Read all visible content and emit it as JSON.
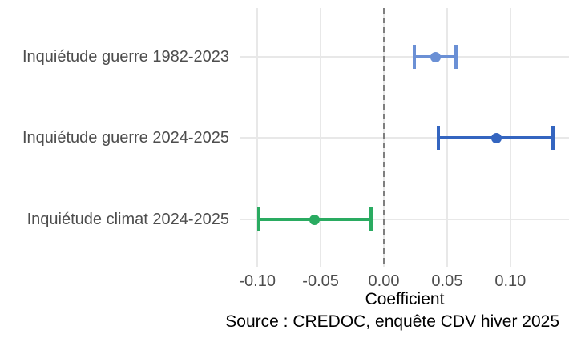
{
  "chart_data": {
    "type": "errorbar",
    "orientation": "horizontal",
    "xlabel": "Coefficient",
    "caption": "Source : CREDOC, enquête CDV hiver 2025",
    "xlim": [
      -0.113,
      0.146
    ],
    "grid": true,
    "legend": "none",
    "zero_line": {
      "x": 0,
      "style": "dashed",
      "color": "#7f7f7f"
    },
    "x_ticks": [
      {
        "label": "-0.10",
        "value": -0.1
      },
      {
        "label": "-0.05",
        "value": -0.05
      },
      {
        "label": "0.00",
        "value": 0.0
      },
      {
        "label": "0.05",
        "value": 0.05
      },
      {
        "label": "0.10",
        "value": 0.1
      }
    ],
    "points": [
      {
        "label": "Inquiétude guerre 1982-2023",
        "estimate": 0.041,
        "ci_low": 0.024,
        "ci_high": 0.057,
        "color": "#6b90d5"
      },
      {
        "label": "Inquiétude guerre 2024-2025",
        "estimate": 0.089,
        "ci_low": 0.043,
        "ci_high": 0.134,
        "color": "#3465c0"
      },
      {
        "label": "Inquiétude climat 2024-2025",
        "estimate": -0.055,
        "ci_low": -0.099,
        "ci_high": -0.01,
        "color": "#2aab61"
      }
    ],
    "text_colors": {
      "axis_text": "#4d4d4d",
      "title_caption": "#000000"
    },
    "gridline_color": "#e8e8e8"
  }
}
